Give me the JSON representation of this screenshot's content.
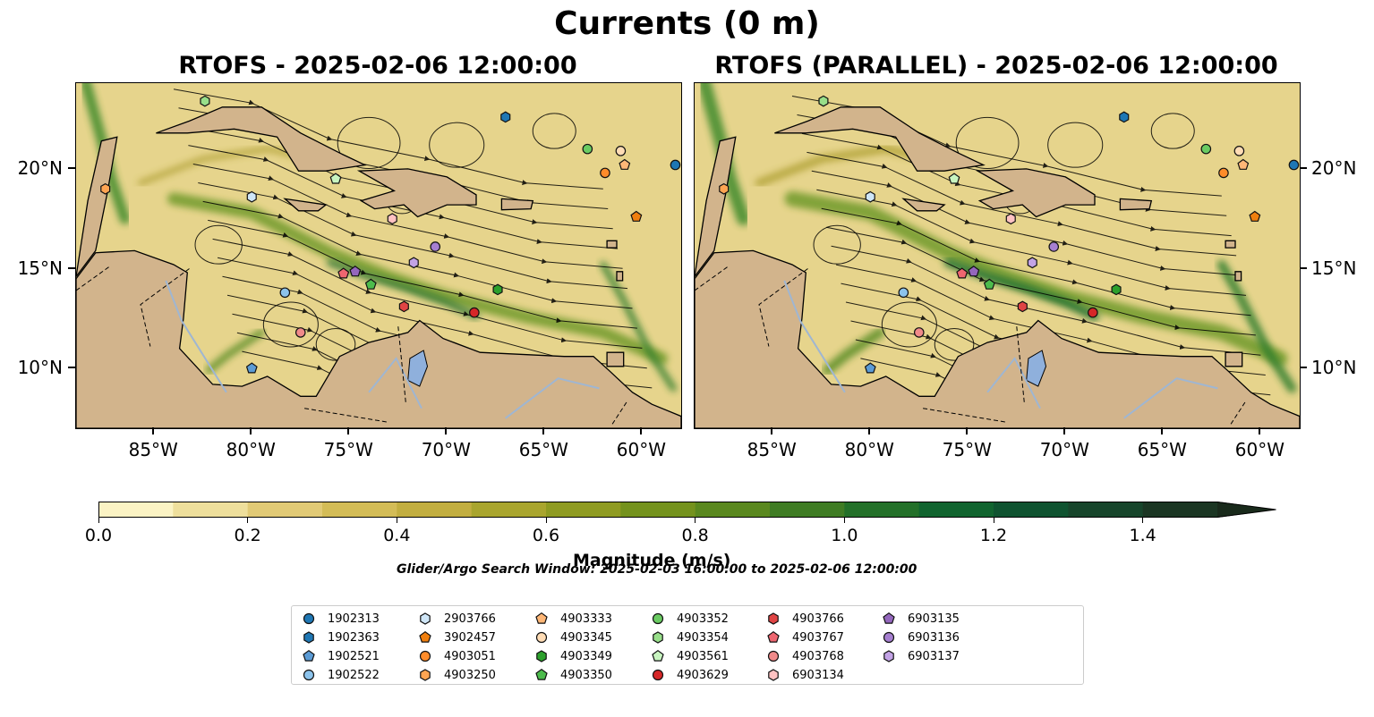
{
  "suptitle": "Currents (0 m)",
  "panels": [
    {
      "title": "RTOFS - 2025-02-06 12:00:00"
    },
    {
      "title": "RTOFS (PARALLEL) - 2025-02-06 12:00:00"
    }
  ],
  "map": {
    "extent": {
      "lon_min": -89,
      "lon_max": -58,
      "lat_min": 7,
      "lat_max": 24.3
    },
    "x_ticks": [
      {
        "lon": -85,
        "label": "85°W"
      },
      {
        "lon": -80,
        "label": "80°W"
      },
      {
        "lon": -75,
        "label": "75°W"
      },
      {
        "lon": -70,
        "label": "70°W"
      },
      {
        "lon": -65,
        "label": "65°W"
      },
      {
        "lon": -60,
        "label": "60°W"
      }
    ],
    "y_ticks": [
      {
        "lat": 10,
        "label": "10°N"
      },
      {
        "lat": 15,
        "label": "15°N"
      },
      {
        "lat": 20,
        "label": "20°N"
      }
    ],
    "land_color": "#d2b48c",
    "lake_color": "#8fb0dc"
  },
  "colorbar": {
    "label": "Magnitude (m/s)",
    "ticks": [
      "0.0",
      "0.2",
      "0.4",
      "0.6",
      "0.8",
      "1.0",
      "1.2",
      "1.4"
    ],
    "colors": [
      "#fbf3c4",
      "#eedf9c",
      "#e1ca76",
      "#d3bc57",
      "#c2ae40",
      "#a9a52e",
      "#8f9b22",
      "#74921d",
      "#5a881f",
      "#3f7c24",
      "#237029",
      "#11642f",
      "#0f5330",
      "#17452b",
      "#1b3623",
      "#192a1b"
    ],
    "extend": "max"
  },
  "search_window": "Glider/Argo Search Window: 2025-02-03 16:00:00 to 2025-02-06 12:00:00",
  "legend": [
    {
      "id": "1902313",
      "shape": "circle",
      "color": "#1f77b4"
    },
    {
      "id": "1902363",
      "shape": "hexagon",
      "color": "#1f77b4"
    },
    {
      "id": "1902521",
      "shape": "pentagon",
      "color": "#5b9bd5"
    },
    {
      "id": "1902522",
      "shape": "circle",
      "color": "#8cc3ec"
    },
    {
      "id": "2903766",
      "shape": "hexagon",
      "color": "#cfe6f7"
    },
    {
      "id": "3902457",
      "shape": "pentagon",
      "color": "#f07f0f"
    },
    {
      "id": "4903051",
      "shape": "circle",
      "color": "#ff8c2a"
    },
    {
      "id": "4903250",
      "shape": "hexagon",
      "color": "#ffa552"
    },
    {
      "id": "4903333",
      "shape": "pentagon",
      "color": "#ffb777"
    },
    {
      "id": "4903345",
      "shape": "circle",
      "color": "#ffdcb5"
    },
    {
      "id": "4903349",
      "shape": "hexagon",
      "color": "#2ca02c"
    },
    {
      "id": "4903350",
      "shape": "pentagon",
      "color": "#4cbb4c"
    },
    {
      "id": "4903352",
      "shape": "circle",
      "color": "#6acb62"
    },
    {
      "id": "4903354",
      "shape": "hexagon",
      "color": "#98df8a"
    },
    {
      "id": "4903561",
      "shape": "pentagon",
      "color": "#c8f5c0"
    },
    {
      "id": "4903629",
      "shape": "circle",
      "color": "#d62728"
    },
    {
      "id": "4903766",
      "shape": "hexagon",
      "color": "#e04444"
    },
    {
      "id": "4903767",
      "shape": "pentagon",
      "color": "#ee6670"
    },
    {
      "id": "4903768",
      "shape": "circle",
      "color": "#f08a8a"
    },
    {
      "id": "6903134",
      "shape": "hexagon",
      "color": "#ffc2c2"
    },
    {
      "id": "6903135",
      "shape": "pentagon",
      "color": "#9467bd"
    },
    {
      "id": "6903136",
      "shape": "circle",
      "color": "#a67fd0"
    },
    {
      "id": "6903137",
      "shape": "hexagon",
      "color": "#c3a3e6"
    }
  ],
  "floats": [
    {
      "id": "1902313",
      "lon": -58.3,
      "lat": 20.2
    },
    {
      "id": "1902363",
      "lon": -67.0,
      "lat": 22.6
    },
    {
      "id": "1902521",
      "lon": -80.0,
      "lat": 10.0
    },
    {
      "id": "1902522",
      "lon": -78.3,
      "lat": 13.8
    },
    {
      "id": "2903766",
      "lon": -80.0,
      "lat": 18.6
    },
    {
      "id": "3902457",
      "lon": -60.3,
      "lat": 17.6
    },
    {
      "id": "4903051",
      "lon": -61.9,
      "lat": 19.8
    },
    {
      "id": "4903250",
      "lon": -87.5,
      "lat": 19.0
    },
    {
      "id": "4903333",
      "lon": -60.9,
      "lat": 20.2
    },
    {
      "id": "4903345",
      "lon": -61.1,
      "lat": 20.9
    },
    {
      "id": "4903349",
      "lon": -67.4,
      "lat": 13.95
    },
    {
      "id": "4903350",
      "lon": -73.9,
      "lat": 14.2
    },
    {
      "id": "4903352",
      "lon": -62.8,
      "lat": 21.0
    },
    {
      "id": "4903354",
      "lon": -82.4,
      "lat": 23.4
    },
    {
      "id": "4903561",
      "lon": -75.7,
      "lat": 19.5
    },
    {
      "id": "4903629",
      "lon": -68.6,
      "lat": 12.8
    },
    {
      "id": "4903766",
      "lon": -72.2,
      "lat": 13.1
    },
    {
      "id": "4903767",
      "lon": -75.3,
      "lat": 14.75
    },
    {
      "id": "4903768",
      "lon": -77.5,
      "lat": 11.8
    },
    {
      "id": "6903134",
      "lon": -72.8,
      "lat": 17.5
    },
    {
      "id": "6903135",
      "lon": -74.7,
      "lat": 14.85
    },
    {
      "id": "6903136",
      "lon": -70.6,
      "lat": 16.1
    },
    {
      "id": "6903137",
      "lon": -71.7,
      "lat": 15.3
    }
  ]
}
